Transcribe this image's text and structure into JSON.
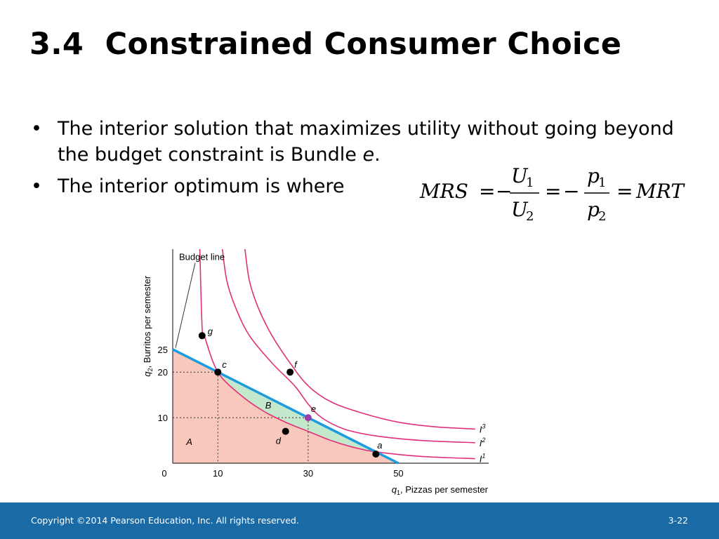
{
  "slide": {
    "title": "3.4  Constrained Consumer Choice",
    "bullets": [
      {
        "symbol": "•",
        "text_before": "The interior solution that maximizes utility without going beyond the budget constraint is Bundle ",
        "emphasis": "e",
        "text_after": "."
      },
      {
        "symbol": "•",
        "text_before": "The interior optimum is where",
        "emphasis": "",
        "text_after": ""
      }
    ],
    "formula": {
      "mrs": "MRS",
      "eq": "=",
      "minus": "−",
      "u": "U",
      "sub1": "1",
      "sub2": "2",
      "p": "p",
      "mrt": "MRT"
    }
  },
  "chart_data": {
    "type": "line",
    "title": "",
    "xlabel_var": "q",
    "xlabel_sub": "1",
    "xlabel_text": ", Pizzas per semester",
    "ylabel_var": "q",
    "ylabel_sub": "2",
    "ylabel_text": ", Burritos per semester",
    "xlim": [
      0,
      70
    ],
    "ylim": [
      0,
      47
    ],
    "x_ticks": [
      "0",
      "10",
      "30",
      "50"
    ],
    "x_tick_values": [
      0,
      10,
      30,
      50
    ],
    "y_ticks": [
      "10",
      "20",
      "25"
    ],
    "y_tick_values": [
      10,
      20,
      25
    ],
    "budget_line": {
      "label": "Budget line",
      "points": [
        [
          0,
          25
        ],
        [
          50,
          0
        ]
      ],
      "color": "#1b9be0"
    },
    "indifference_curves": [
      {
        "name": "I",
        "sup": "1",
        "points": [
          [
            6,
            47
          ],
          [
            6.5,
            30
          ],
          [
            7,
            28
          ],
          [
            10,
            20
          ],
          [
            15,
            15
          ],
          [
            20,
            11.5
          ],
          [
            25,
            9
          ],
          [
            30,
            7
          ],
          [
            35,
            5
          ],
          [
            40,
            3.5
          ],
          [
            45,
            2.5
          ],
          [
            55,
            1.5
          ],
          [
            67,
            1
          ]
        ],
        "color": "#e0307a"
      },
      {
        "name": "I",
        "sup": "2",
        "points": [
          [
            11,
            47
          ],
          [
            12,
            40
          ],
          [
            14,
            34
          ],
          [
            17,
            28
          ],
          [
            22,
            22
          ],
          [
            27,
            17
          ],
          [
            30,
            13
          ],
          [
            33,
            10
          ],
          [
            38,
            7.5
          ],
          [
            45,
            6
          ],
          [
            55,
            5
          ],
          [
            67,
            4.5
          ]
        ],
        "color": "#e0307a"
      },
      {
        "name": "I",
        "sup": "3",
        "points": [
          [
            16,
            47
          ],
          [
            17,
            40
          ],
          [
            19,
            34
          ],
          [
            22,
            28
          ],
          [
            26,
            22
          ],
          [
            30,
            17
          ],
          [
            35,
            13.5
          ],
          [
            42,
            11
          ],
          [
            50,
            9
          ],
          [
            58,
            8
          ],
          [
            67,
            7.5
          ]
        ],
        "color": "#e0307a"
      }
    ],
    "points": [
      {
        "label": "g",
        "x": 6.5,
        "y": 28,
        "color": "#000000"
      },
      {
        "label": "c",
        "x": 10,
        "y": 20,
        "color": "#000000"
      },
      {
        "label": "f",
        "x": 26,
        "y": 20,
        "color": "#000000"
      },
      {
        "label": "e",
        "x": 30,
        "y": 10,
        "color": "#9b3fa8"
      },
      {
        "label": "d",
        "x": 25,
        "y": 7,
        "color": "#000000"
      },
      {
        "label": "a",
        "x": 45,
        "y": 2,
        "color": "#000000"
      }
    ],
    "regions": [
      {
        "label": "A",
        "color": "#f8c8bc"
      },
      {
        "label": "B",
        "color": "#c4e8cc"
      }
    ],
    "guides": [
      {
        "x": 10,
        "y": 20
      },
      {
        "x": 30,
        "y": 10
      }
    ]
  },
  "footer": {
    "copyright": "Copyright ©2014 Pearson Education, Inc. All rights reserved.",
    "page": "3-22"
  }
}
